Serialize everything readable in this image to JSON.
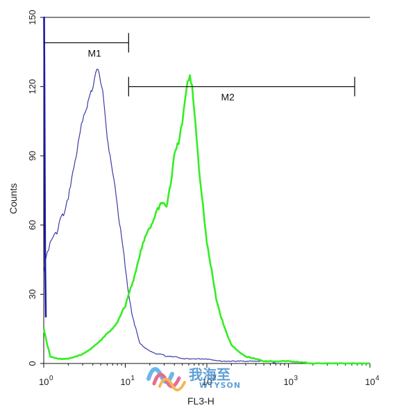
{
  "chart_data": {
    "type": "line",
    "xlabel": "FL3-H",
    "ylabel": "Counts",
    "xscale": "log",
    "xlim": [
      1,
      10000
    ],
    "ylim": [
      0,
      150
    ],
    "y_ticks": [
      0,
      30,
      60,
      90,
      120,
      150
    ],
    "x_ticks": [
      {
        "value": 1,
        "base": "10",
        "exp": "0"
      },
      {
        "value": 10,
        "base": "10",
        "exp": "1"
      },
      {
        "value": 100,
        "base": "10",
        "exp": "2"
      },
      {
        "value": 1000,
        "base": "10",
        "exp": "3"
      },
      {
        "value": 10000,
        "base": "10",
        "exp": "4"
      }
    ],
    "markers": [
      {
        "label": "M1",
        "x_start": 1,
        "x_end": 11,
        "y": 139
      },
      {
        "label": "M2",
        "x_start": 11,
        "x_end": 6500,
        "y": 120
      }
    ],
    "series": [
      {
        "color": "#3a3aa8",
        "x": [
          1,
          1.05,
          1.1,
          1.15,
          1.2,
          1.3,
          1.4,
          1.5,
          1.6,
          1.8,
          2.0,
          2.2,
          2.5,
          2.8,
          3.0,
          3.3,
          3.6,
          3.8,
          4.0,
          4.2,
          4.5,
          4.8,
          5.0,
          5.3,
          5.6,
          6.0,
          6.5,
          7.0,
          7.5,
          8.0,
          9.0,
          10,
          11,
          12,
          13,
          14,
          15,
          17,
          19,
          21,
          24,
          28,
          32,
          36,
          42,
          50,
          60,
          80,
          100,
          150,
          200,
          300,
          400,
          500,
          600,
          700,
          800
        ],
        "values": [
          40,
          44,
          48,
          50,
          52,
          55,
          56,
          58,
          63,
          65,
          72,
          80,
          90,
          100,
          106,
          110,
          115,
          118,
          119,
          123,
          128,
          125,
          122,
          119,
          110,
          98,
          90,
          82,
          77,
          68,
          55,
          42,
          30,
          22,
          17,
          13,
          9,
          7,
          6,
          5,
          4,
          4,
          3,
          3,
          3,
          2,
          2,
          2,
          2,
          1,
          1,
          1,
          1,
          1,
          1,
          0,
          0
        ]
      },
      {
        "color": "#33ee22",
        "x": [
          1,
          1.05,
          1.1,
          1.15,
          1.2,
          1.5,
          2,
          3,
          4,
          5,
          6,
          7,
          8,
          9,
          10,
          11,
          12,
          13,
          14,
          15,
          17,
          19,
          21,
          23,
          25,
          28,
          32,
          36,
          40,
          45,
          50,
          54,
          58,
          62,
          66,
          70,
          75,
          80,
          90,
          100,
          115,
          130,
          150,
          175,
          200,
          250,
          300,
          400,
          500,
          700,
          1000,
          2000,
          4000,
          10000
        ],
        "values": [
          15,
          12,
          8,
          6,
          3,
          2,
          2,
          4,
          7,
          10,
          13,
          15,
          18,
          22,
          25,
          30,
          34,
          38,
          42,
          47,
          53,
          58,
          60,
          64,
          67,
          70,
          68,
          78,
          90,
          96,
          104,
          114,
          122,
          124,
          120,
          110,
          98,
          85,
          68,
          52,
          40,
          28,
          20,
          13,
          8,
          5,
          3,
          2,
          1,
          1,
          1,
          0,
          0,
          0
        ]
      },
      {
        "color": "#1a1aa8",
        "x": [
          1,
          1.01,
          1.02,
          1.03,
          1.04,
          1.06
        ],
        "values": [
          150,
          150,
          120,
          80,
          45,
          20
        ]
      }
    ]
  },
  "watermark": {
    "brand": "我海至",
    "sub": "WTYSON"
  }
}
